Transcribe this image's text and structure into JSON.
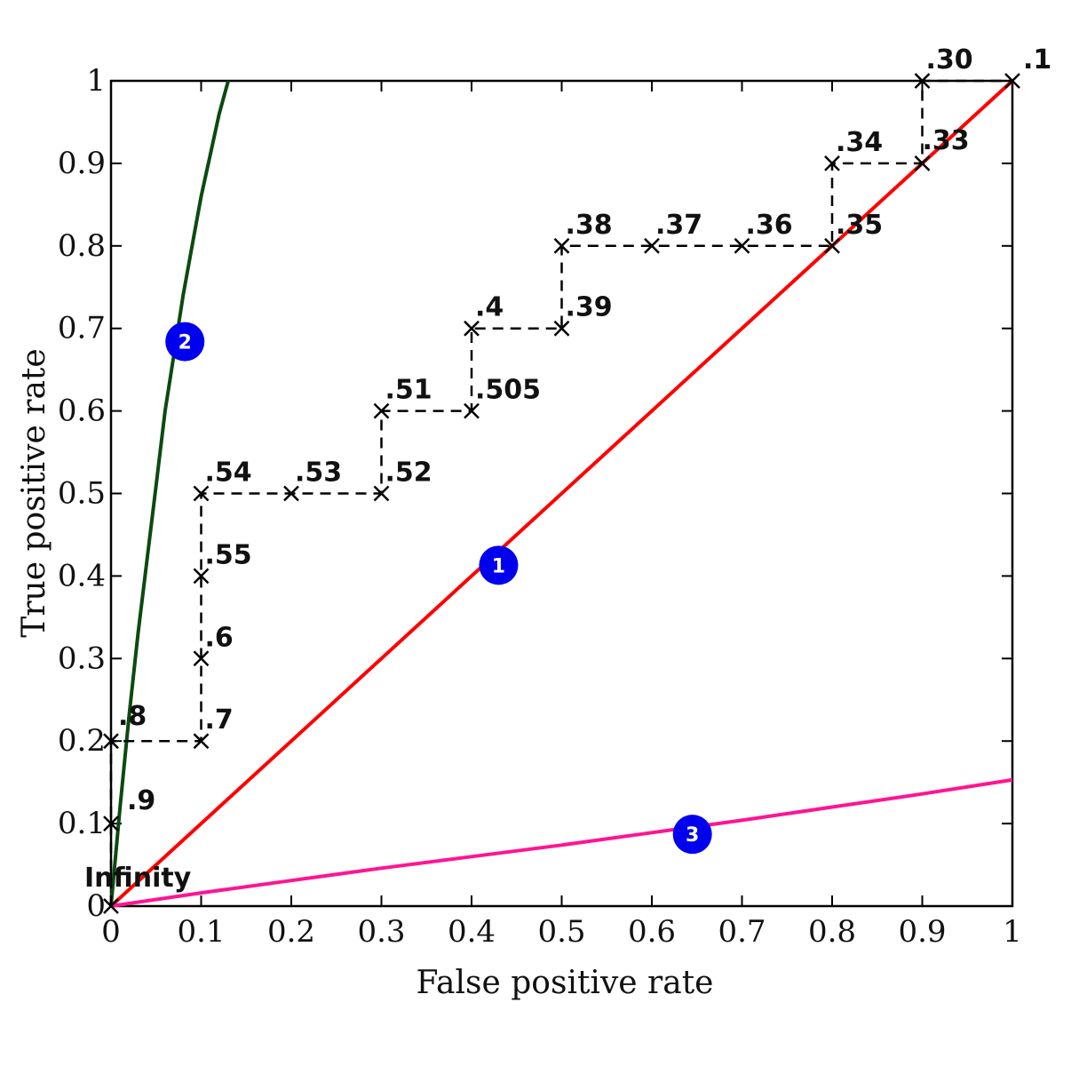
{
  "chart_data": {
    "type": "line",
    "xlabel": "False positive rate",
    "ylabel": "True positive rate",
    "xlim": [
      0,
      1
    ],
    "ylim": [
      0,
      1
    ],
    "xticks": [
      "0",
      "0.1",
      "0.2",
      "0.3",
      "0.4",
      "0.5",
      "0.6",
      "0.7",
      "0.8",
      "0.9",
      "1"
    ],
    "yticks": [
      "0",
      "0.1",
      "0.2",
      "0.3",
      "0.4",
      "0.5",
      "0.6",
      "0.7",
      "0.8",
      "0.9",
      "1"
    ],
    "grid": false,
    "stepped_roc": {
      "style": "dashed",
      "color": "#000000",
      "points": [
        {
          "x": 0.0,
          "y": 0.0,
          "label": "Infinity"
        },
        {
          "x": 0.0,
          "y": 0.1,
          "label": ".9"
        },
        {
          "x": 0.0,
          "y": 0.2,
          "label": ".8"
        },
        {
          "x": 0.1,
          "y": 0.2,
          "label": ".7"
        },
        {
          "x": 0.1,
          "y": 0.3,
          "label": ".6"
        },
        {
          "x": 0.1,
          "y": 0.4,
          "label": ".55"
        },
        {
          "x": 0.1,
          "y": 0.5,
          "label": ".54"
        },
        {
          "x": 0.2,
          "y": 0.5,
          "label": ".53"
        },
        {
          "x": 0.3,
          "y": 0.5,
          "label": ".52"
        },
        {
          "x": 0.3,
          "y": 0.6,
          "label": ".51"
        },
        {
          "x": 0.4,
          "y": 0.6,
          "label": ".505"
        },
        {
          "x": 0.4,
          "y": 0.7,
          "label": ".4"
        },
        {
          "x": 0.5,
          "y": 0.7,
          "label": ".39"
        },
        {
          "x": 0.5,
          "y": 0.8,
          "label": ".38"
        },
        {
          "x": 0.6,
          "y": 0.8,
          "label": ".37"
        },
        {
          "x": 0.7,
          "y": 0.8,
          "label": ".36"
        },
        {
          "x": 0.8,
          "y": 0.8,
          "label": ".35"
        },
        {
          "x": 0.8,
          "y": 0.9,
          "label": ".34"
        },
        {
          "x": 0.9,
          "y": 0.9,
          "label": ".33"
        },
        {
          "x": 0.9,
          "y": 1.0,
          "label": ".30"
        },
        {
          "x": 1.0,
          "y": 1.0,
          "label": ".1"
        }
      ]
    },
    "curves": [
      {
        "badge": "1",
        "color": "#ff0000",
        "badge_color": "#0000ee",
        "points": [
          [
            0,
            0
          ],
          [
            1,
            1
          ]
        ],
        "badge_at": [
          0.43,
          0.413
        ]
      },
      {
        "badge": "2",
        "color": "#0b4a10",
        "badge_color": "#0000ee",
        "points": [
          [
            0,
            0
          ],
          [
            0.01,
            0.12
          ],
          [
            0.02,
            0.23
          ],
          [
            0.03,
            0.33
          ],
          [
            0.04,
            0.42
          ],
          [
            0.05,
            0.51
          ],
          [
            0.06,
            0.6
          ],
          [
            0.07,
            0.67
          ],
          [
            0.08,
            0.74
          ],
          [
            0.09,
            0.8
          ],
          [
            0.1,
            0.86
          ],
          [
            0.11,
            0.91
          ],
          [
            0.12,
            0.96
          ],
          [
            0.13,
            1.0
          ]
        ],
        "badge_at": [
          0.082,
          0.684
        ]
      },
      {
        "badge": "3",
        "color": "#ff1493",
        "badge_color": "#0000ee",
        "points": [
          [
            0,
            0
          ],
          [
            0.1,
            0.016
          ],
          [
            0.2,
            0.031
          ],
          [
            0.3,
            0.046
          ],
          [
            0.4,
            0.06
          ],
          [
            0.5,
            0.074
          ],
          [
            0.6,
            0.089
          ],
          [
            0.7,
            0.104
          ],
          [
            0.8,
            0.12
          ],
          [
            0.9,
            0.136
          ],
          [
            1.0,
            0.153
          ]
        ],
        "badge_at": [
          0.645,
          0.087
        ]
      }
    ]
  }
}
